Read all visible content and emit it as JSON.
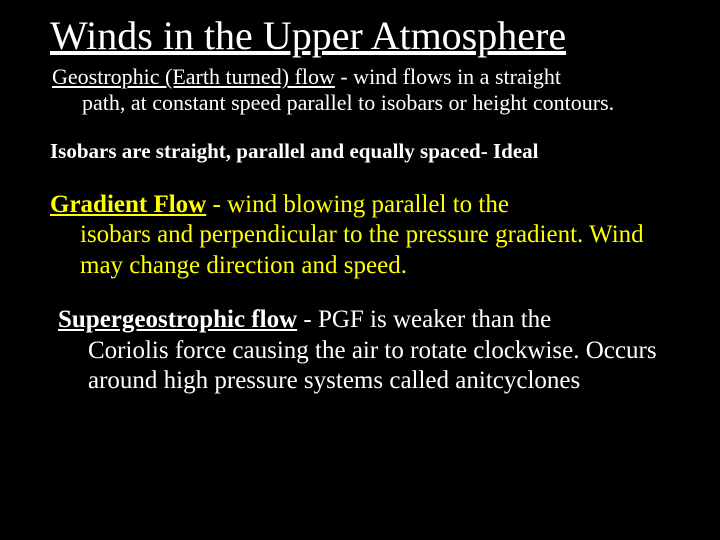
{
  "colors": {
    "background": "#000000",
    "text": "#ffffff",
    "highlight": "#ffff00"
  },
  "title": "Winds in the Upper Atmosphere",
  "geostrophic": {
    "lead": "Geostrophic (Earth turned) flow",
    "rest_line1": " - wind flows in a straight",
    "rest_body": "path, at constant speed parallel to isobars or height contours."
  },
  "isobars": "Isobars are straight, parallel and equally spaced- Ideal",
  "gradient": {
    "lead": "Gradient Flow",
    "rest_line1": " - wind blowing parallel to the",
    "rest_body": "isobars and perpendicular to the pressure gradient. Wind may change direction and speed."
  },
  "supergeo": {
    "lead": "Supergeostrophic flow",
    "rest_line1": " - PGF is weaker than the",
    "rest_body": "Coriolis force causing the air to rotate clockwise. Occurs around high pressure systems called anitcyclones"
  }
}
